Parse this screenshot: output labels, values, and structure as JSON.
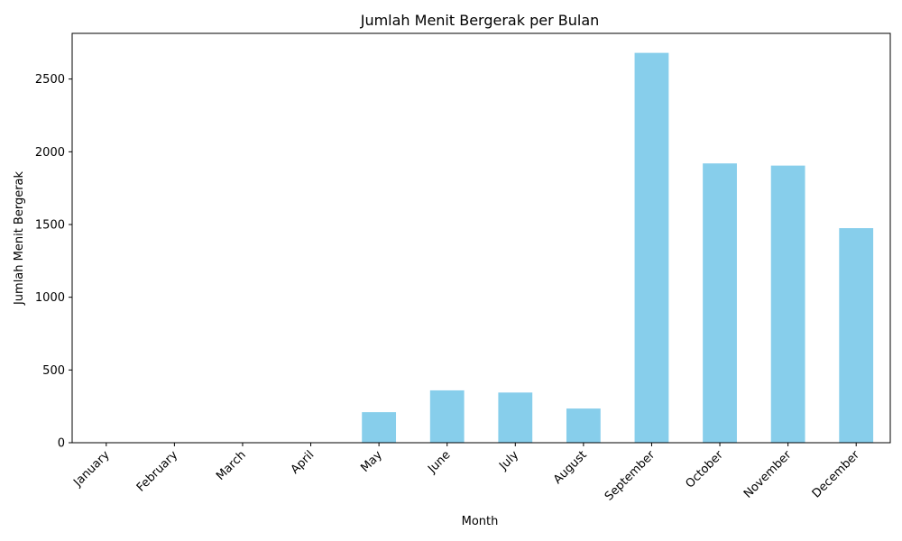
{
  "chart_data": {
    "type": "bar",
    "title": "Jumlah Menit Bergerak per Bulan",
    "xlabel": "Month",
    "ylabel": "Jumlah Menit Bergerak",
    "categories": [
      "January",
      "February",
      "March",
      "April",
      "May",
      "June",
      "July",
      "August",
      "September",
      "October",
      "November",
      "December"
    ],
    "values": [
      0,
      0,
      0,
      0,
      210,
      360,
      345,
      235,
      2680,
      1920,
      1905,
      1475
    ],
    "ylim": [
      0,
      2814
    ],
    "yticks": [
      0,
      500,
      1000,
      1500,
      2000,
      2500
    ],
    "bar_color": "#87ceeb",
    "grid": false,
    "legend": "none"
  }
}
